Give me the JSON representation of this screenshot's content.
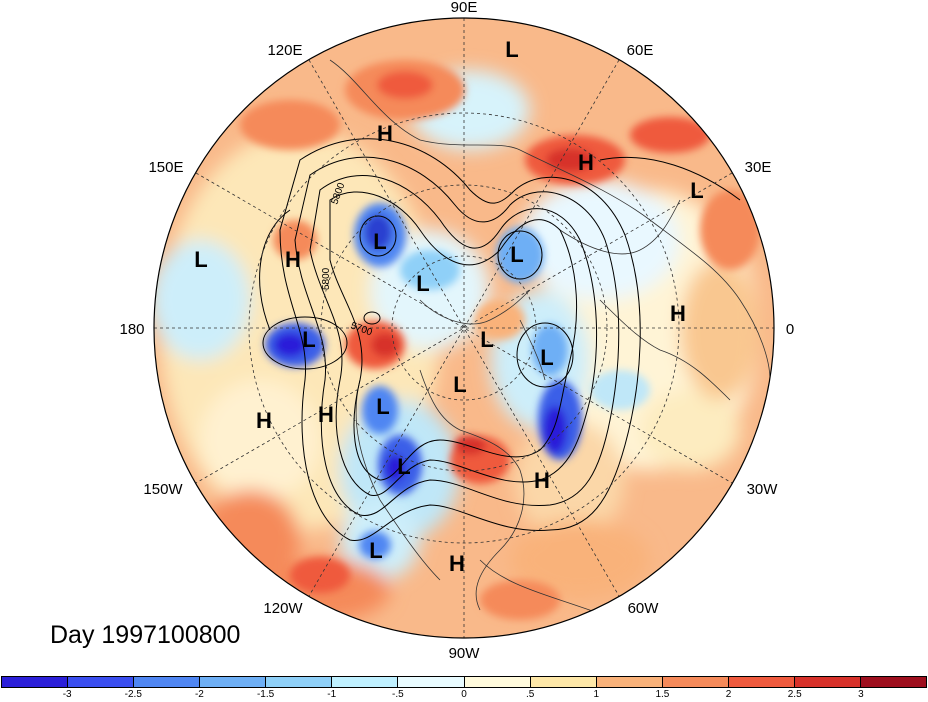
{
  "map": {
    "projection": "north polar stereographic",
    "title": "Day 1997100800",
    "longitude_labels": [
      "90E",
      "60E",
      "30E",
      "0",
      "30W",
      "60W",
      "90W",
      "120W",
      "150W",
      "180",
      "150E",
      "120E"
    ],
    "contour_labels": [
      "5800",
      "5800",
      "5700"
    ],
    "highs": [
      "H",
      "H",
      "H",
      "H",
      "H",
      "H",
      "H"
    ],
    "lows": [
      "L",
      "L",
      "L",
      "L",
      "L",
      "L",
      "L",
      "L",
      "L",
      "L",
      "L",
      "L",
      "L"
    ]
  },
  "colorbar": {
    "colors": [
      "#2b1fd9",
      "#3a4ef0",
      "#4f86f2",
      "#6eaff5",
      "#8fd0f8",
      "#bff0ff",
      "#e8fbff",
      "#fffadc",
      "#fde7a8",
      "#f9b27a",
      "#f58a5a",
      "#ef5a3e",
      "#d7312a",
      "#9e0f1e"
    ],
    "ticks": [
      "-3",
      "-2.5",
      "-2",
      "-1.5",
      "-1",
      "-.5",
      "0",
      ".5",
      "1",
      "1.5",
      "2",
      "2.5",
      "3"
    ]
  }
}
